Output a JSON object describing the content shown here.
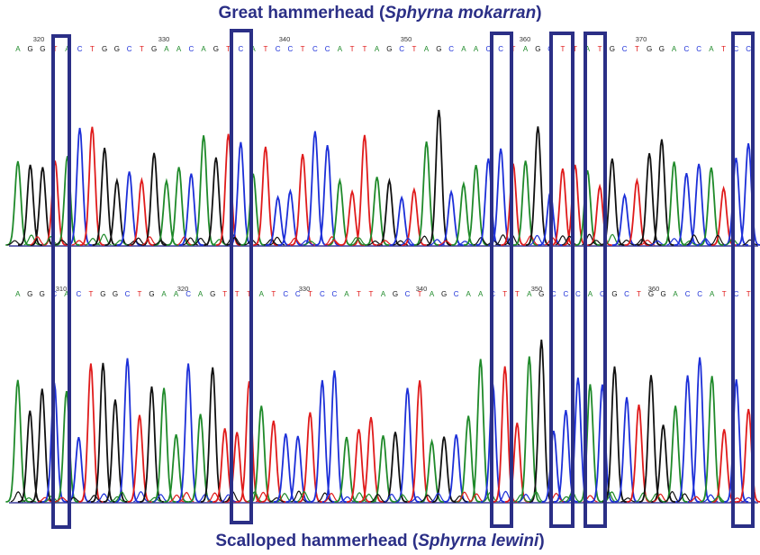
{
  "top_panel": {
    "title_common": "Great hammerhead (",
    "title_scientific": "Sphyrna mokarran",
    "title_close": ")",
    "position_labels": [
      "320",
      "330",
      "340",
      "350",
      "360",
      "370"
    ],
    "sequence": "AGGTACTGGCTGAACAGTCATCCTCCATTAGCTAGCAACCTAGCTTATGCTGGACCATCC"
  },
  "bottom_panel": {
    "title_common": "Scalloped hammerhead (",
    "title_scientific": "Sphyrna lewini",
    "title_close": ")",
    "position_labels": [
      "310",
      "320",
      "330",
      "340",
      "350",
      "360"
    ],
    "sequence": "AGGCACTGGCTGAACAGTTTATCCTCCATTAGCTAGCAACTTAGCCCACGCTGGACCATCT"
  },
  "base_colors": {
    "A": "#1f8a2a",
    "C": "#1c2fd8",
    "G": "#111111",
    "T": "#e01b1b"
  },
  "highlight_color": "#2b2f86",
  "highlight_boxes_count": 6
}
